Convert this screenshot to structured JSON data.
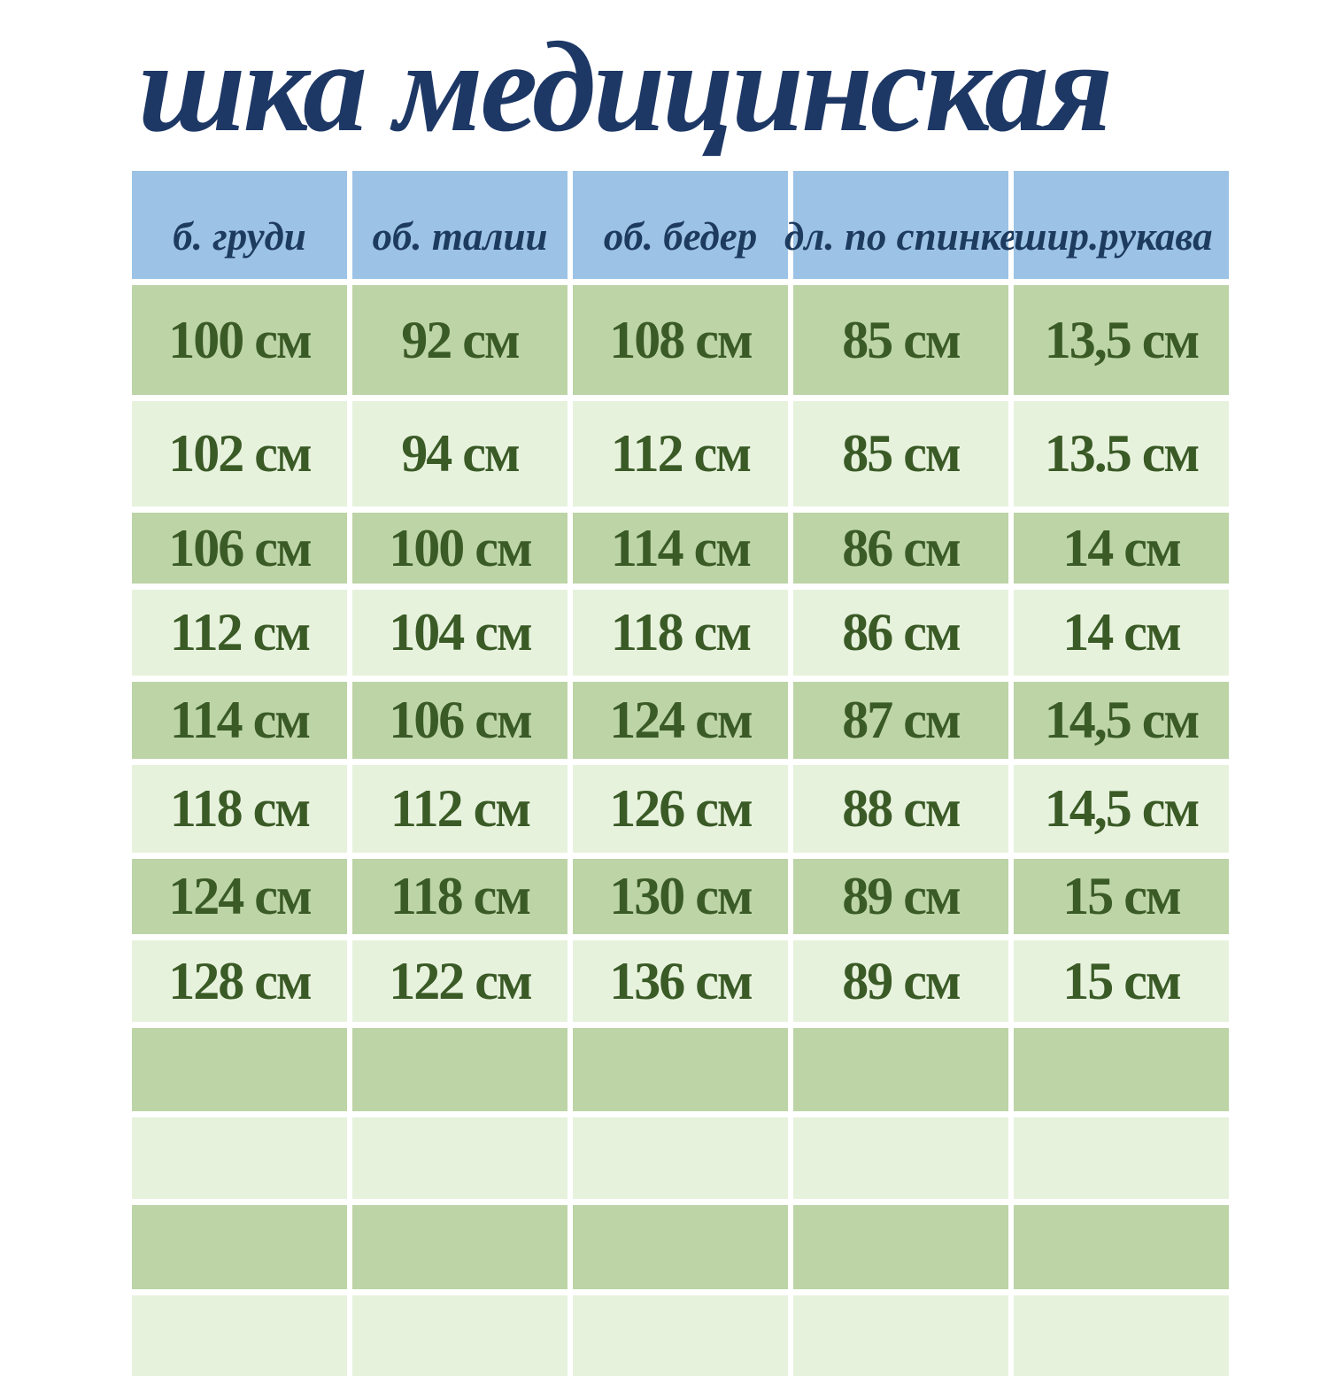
{
  "title": "шка медицинская",
  "table": {
    "headers": [
      "б. груди",
      "об. талии",
      "об. бедер",
      "дл. по спинке",
      "шир.рукава"
    ],
    "rows": [
      [
        "100 см",
        "92 см",
        "108 см",
        "85 см",
        "13,5 см"
      ],
      [
        "102 см",
        "94 см",
        "112 см",
        "85 см",
        "13.5 см"
      ],
      [
        "106 см",
        "100 см",
        "114 см",
        "86 см",
        "14 см"
      ],
      [
        "112 см",
        "104 см",
        "118 см",
        "86 см",
        "14 см"
      ],
      [
        "114 см",
        "106 см",
        "124 см",
        "87 см",
        "14,5 см"
      ],
      [
        "118 см",
        "112 см",
        "126 см",
        "88 см",
        "14,5 см"
      ],
      [
        "124 см",
        "118 см",
        "130 см",
        "89 см",
        "15 см"
      ],
      [
        "128 см",
        "122 см",
        "136 см",
        "89 см",
        "15 см"
      ]
    ],
    "empty_row_count": 4
  },
  "colors": {
    "background": "#ffffff",
    "title_text": "#1e3866",
    "header_bg": "#9cc2e5",
    "header_text": "#1d3b5e",
    "row_dark_bg": "#bcd4a6",
    "row_light_bg": "#e7f2dd",
    "value_text": "#3a5a26"
  }
}
